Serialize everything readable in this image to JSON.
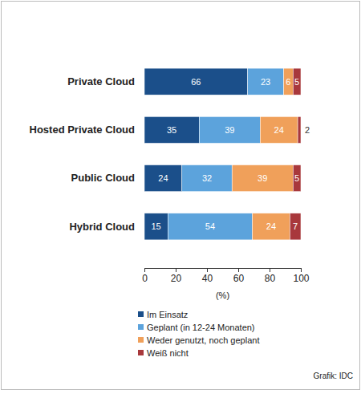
{
  "chart_data": {
    "type": "bar",
    "orientation": "horizontal",
    "stacked": true,
    "data_labels": true,
    "grid": false,
    "categories": [
      "Private Cloud",
      "Hosted Private Cloud",
      "Public Cloud",
      "Hybrid Cloud"
    ],
    "series": [
      {
        "name": "Im Einsatz",
        "color": "#1b4f8a",
        "values": [
          66,
          35,
          24,
          15
        ]
      },
      {
        "name": "Geplant (in 12-24 Monaten)",
        "color": "#5ca3dc",
        "values": [
          23,
          39,
          32,
          54
        ]
      },
      {
        "name": "Weder genutzt, noch geplant",
        "color": "#f0a05a",
        "values": [
          6,
          24,
          39,
          24
        ]
      },
      {
        "name": "Weiß nicht",
        "color": "#a8383c",
        "values": [
          5,
          2,
          5,
          7
        ]
      }
    ],
    "xlim": [
      0,
      100
    ],
    "xticks": [
      0,
      20,
      40,
      60,
      80,
      100
    ],
    "x_label": "(%)",
    "source": "Grafik: IDC"
  }
}
